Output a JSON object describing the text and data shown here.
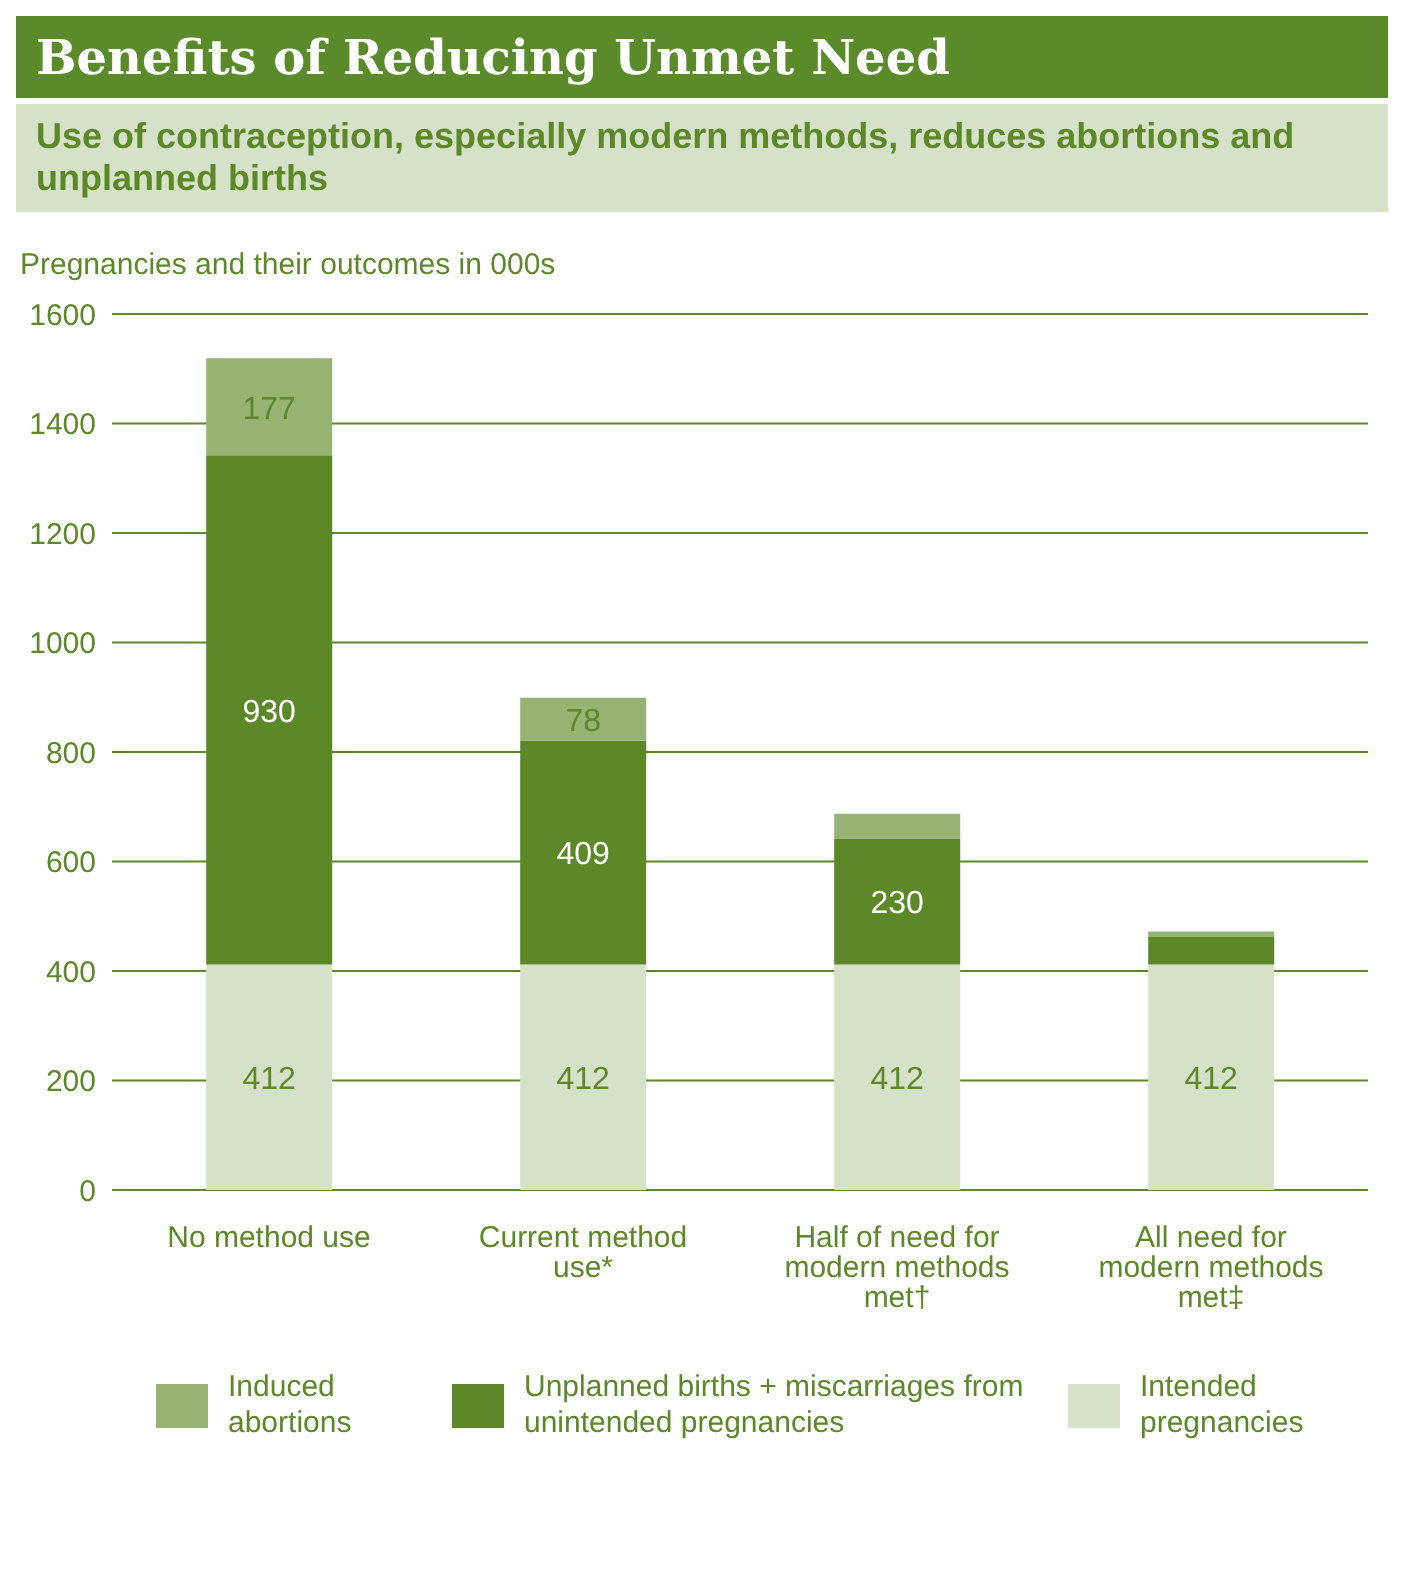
{
  "chart_data": {
    "type": "bar",
    "title": "Benefits of Reducing Unmet Need",
    "subtitle": "Use of contraception, especially modern methods, reduces abortions and unplanned births",
    "ylabel": "Pregnancies and their outcomes in 000s",
    "categories": [
      "No method use",
      "Current method use*",
      "Half of need for modern methods met†",
      "All need for modern methods met‡"
    ],
    "stacked": true,
    "series": [
      {
        "name": "Intended pregnancies",
        "color": "#d6e1c9",
        "values": [
          412,
          412,
          412,
          412
        ],
        "value_labels": [
          "412",
          "412",
          "412",
          "412"
        ]
      },
      {
        "name": "Unplanned births + miscarriages from unintended pregnancies",
        "color": "#5c8828",
        "values": [
          930,
          409,
          230,
          50
        ],
        "value_labels": [
          "930",
          "409",
          "230",
          null
        ]
      },
      {
        "name": "Induced abortions",
        "color": "#97b373",
        "values": [
          177,
          78,
          45,
          10
        ],
        "value_labels": [
          "177",
          "78",
          null,
          null
        ]
      }
    ],
    "ylim": [
      0,
      1600
    ],
    "yticks": [
      0,
      200,
      400,
      600,
      800,
      1000,
      1200,
      1400,
      1600
    ],
    "grid": "y",
    "legend": "bottom"
  }
}
